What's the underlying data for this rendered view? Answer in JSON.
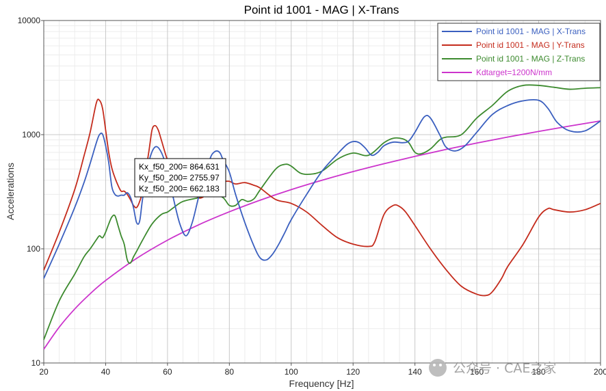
{
  "chart_data": {
    "type": "line",
    "title": "Point id 1001 - MAG | X-Trans",
    "xlabel": "Frequency [Hz]",
    "ylabel": "Accelerations",
    "xlim": [
      20,
      200
    ],
    "ylim": [
      10,
      10000
    ],
    "yscale": "log",
    "grid": true,
    "legend_position": "top-right",
    "x_ticks": [
      20,
      40,
      60,
      80,
      100,
      120,
      140,
      160,
      180,
      200
    ],
    "x_tick_labels": [
      "20",
      "40",
      "60",
      "80",
      "100",
      "120",
      "140",
      "160",
      "180",
      "200"
    ],
    "y_ticks": [
      10,
      100,
      1000,
      10000
    ],
    "y_tick_labels": [
      "10",
      "100",
      "1000",
      "10000"
    ],
    "series": [
      {
        "name": "Point id 1001 - MAG | X-Trans",
        "color": "#3a5fbf",
        "x": [
          20,
          25,
          30,
          33,
          35,
          37,
          38,
          39,
          40,
          41,
          42,
          43,
          44,
          45,
          46,
          47,
          48,
          49,
          50,
          51,
          52,
          54,
          56,
          58,
          60,
          62,
          64,
          66,
          68,
          70,
          72,
          74,
          75,
          76,
          77,
          78,
          80,
          82,
          85,
          88,
          90,
          92,
          94,
          96,
          98,
          100,
          105,
          110,
          115,
          118,
          120,
          122,
          124,
          126,
          128,
          130,
          133,
          136,
          138,
          140,
          143,
          145,
          148,
          150,
          153,
          156,
          160,
          165,
          170,
          175,
          180,
          183,
          186,
          190,
          195,
          200
        ],
        "y": [
          55,
          110,
          230,
          380,
          560,
          850,
          1000,
          1010,
          800,
          570,
          350,
          300,
          290,
          295,
          295,
          310,
          285,
          230,
          170,
          175,
          280,
          580,
          780,
          700,
          480,
          270,
          165,
          130,
          170,
          280,
          450,
          640,
          700,
          720,
          690,
          600,
          470,
          300,
          170,
          105,
          83,
          80,
          90,
          110,
          140,
          180,
          300,
          480,
          680,
          820,
          870,
          850,
          760,
          660,
          700,
          800,
          860,
          850,
          880,
          1050,
          1430,
          1400,
          1000,
          780,
          720,
          790,
          1050,
          1500,
          1800,
          1980,
          2000,
          1700,
          1280,
          1080,
          1080,
          1320
        ]
      },
      {
        "name": "Point id 1001 - MAG | Y-Trans",
        "color": "#c42b1c",
        "x": [
          20,
          25,
          30,
          33,
          35,
          37,
          38,
          39,
          40,
          41,
          42,
          43,
          44,
          45,
          46,
          47,
          48,
          49,
          50,
          51,
          52,
          54,
          55,
          56,
          57,
          58,
          60,
          62,
          64,
          66,
          68,
          70,
          72,
          74,
          76,
          78,
          80,
          82,
          85,
          88,
          90,
          95,
          100,
          105,
          110,
          115,
          120,
          125,
          127,
          130,
          133,
          135,
          137,
          140,
          145,
          150,
          155,
          160,
          163,
          165,
          168,
          170,
          175,
          180,
          183,
          185,
          190,
          195,
          200
        ],
        "y": [
          65,
          140,
          330,
          650,
          1050,
          1900,
          2000,
          1700,
          1100,
          700,
          510,
          420,
          360,
          320,
          320,
          300,
          270,
          240,
          230,
          260,
          330,
          720,
          1100,
          1200,
          1100,
          900,
          600,
          480,
          430,
          390,
          330,
          280,
          290,
          330,
          400,
          390,
          390,
          370,
          380,
          360,
          340,
          270,
          250,
          210,
          160,
          125,
          110,
          105,
          115,
          200,
          240,
          235,
          210,
          160,
          100,
          66,
          47,
          40,
          39,
          42,
          55,
          70,
          110,
          190,
          225,
          220,
          210,
          220,
          250
        ]
      },
      {
        "name": "Point id 1001 - MAG | Z-Trans",
        "color": "#3c8a2e",
        "x": [
          20,
          25,
          30,
          33,
          35,
          37,
          38,
          39,
          40,
          41,
          42,
          43,
          44,
          45,
          46,
          47,
          48,
          49,
          50,
          52,
          55,
          58,
          60,
          62,
          65,
          70,
          75,
          78,
          80,
          82,
          84,
          86,
          88,
          90,
          95,
          98,
          100,
          103,
          106,
          110,
          115,
          120,
          125,
          130,
          133,
          136,
          138,
          140,
          142,
          145,
          148,
          150,
          155,
          160,
          165,
          170,
          175,
          180,
          185,
          190,
          195,
          200
        ],
        "y": [
          16,
          35,
          60,
          85,
          100,
          120,
          130,
          125,
          140,
          165,
          190,
          195,
          160,
          130,
          110,
          80,
          75,
          85,
          95,
          120,
          165,
          200,
          210,
          230,
          260,
          280,
          300,
          280,
          240,
          240,
          270,
          260,
          275,
          330,
          500,
          550,
          530,
          460,
          450,
          480,
          610,
          690,
          660,
          850,
          930,
          920,
          850,
          700,
          680,
          750,
          900,
          950,
          1000,
          1400,
          1800,
          2400,
          2700,
          2700,
          2600,
          2500,
          2550,
          2580
        ]
      },
      {
        "name": "Kdtarget=1200N/mm",
        "color": "#cc33cc",
        "x": [
          20,
          25,
          30,
          35,
          40,
          50,
          60,
          70,
          80,
          90,
          100,
          110,
          120,
          130,
          140,
          150,
          160,
          170,
          180,
          190,
          200
        ],
        "y": [
          13.2,
          20.6,
          29.7,
          40.4,
          52.8,
          82.4,
          119,
          162,
          211,
          267,
          330,
          399,
          475,
          557,
          646,
          742,
          844,
          953,
          1068,
          1190,
          1319
        ]
      }
    ],
    "annotation": {
      "lines": [
        "Kx_f50_200= 864.631",
        "Ky_f50_200= 2755.97",
        "Kz_f50_200= 662.183"
      ]
    }
  },
  "watermark": {
    "text": "公众号 · CAE之家"
  }
}
